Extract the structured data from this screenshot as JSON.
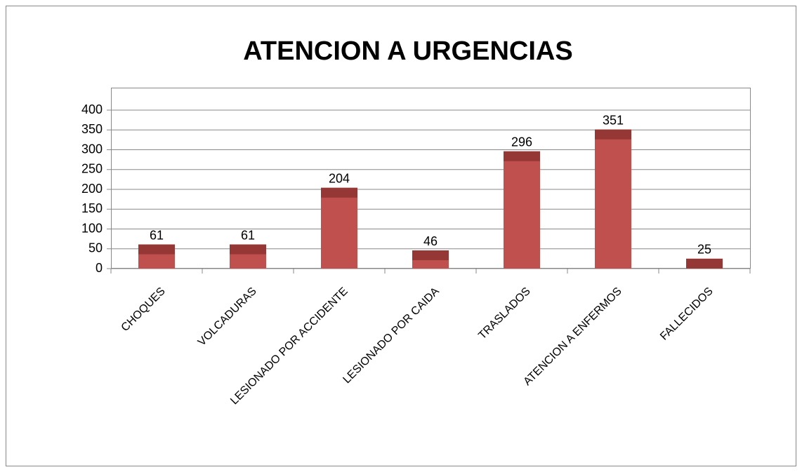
{
  "chart_data": {
    "type": "bar",
    "title": "ATENCION A URGENCIAS",
    "categories": [
      "CHOQUES",
      "VOLCADURAS",
      "LESIONADO POR ACCIDENTE",
      "LESIONADO POR CAIDA",
      "TRASLADOS",
      "ATENCION A ENFERMOS",
      "FALLECIDOS"
    ],
    "values": [
      61,
      61,
      204,
      46,
      296,
      351,
      25
    ],
    "color": "#c0504d",
    "ylim": [
      0,
      400
    ],
    "yticks": [
      0,
      50,
      100,
      150,
      200,
      250,
      300,
      350,
      400
    ],
    "grid": true
  }
}
